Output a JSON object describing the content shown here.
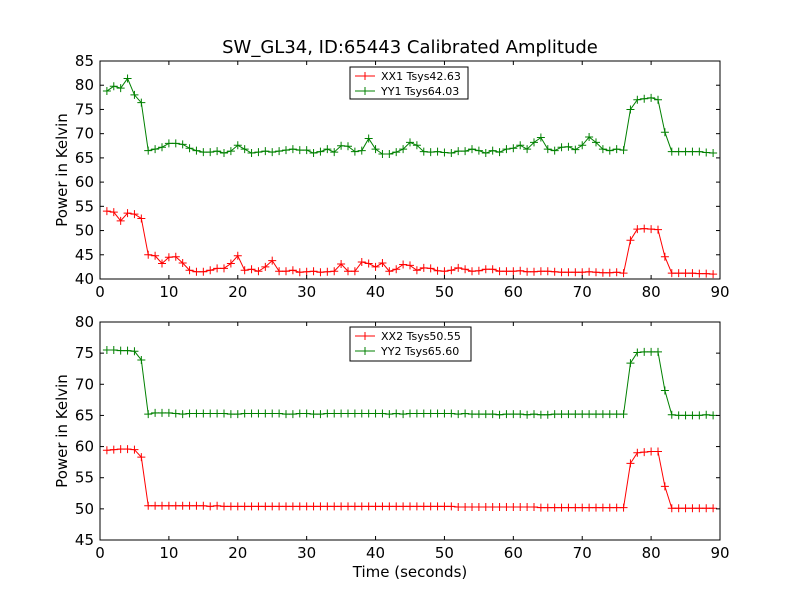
{
  "chart_data": [
    {
      "type": "line",
      "title": "SW_GL34, ID:65443 Calibrated Amplitude",
      "xlabel": "",
      "ylabel": "Power in Kelvin",
      "xlim": [
        0,
        90
      ],
      "ylim": [
        40,
        85
      ],
      "xticks": [
        0,
        10,
        20,
        30,
        40,
        50,
        60,
        70,
        80,
        90
      ],
      "yticks": [
        40,
        45,
        50,
        55,
        60,
        65,
        70,
        75,
        80,
        85
      ],
      "grid": false,
      "legend_position": "top-center",
      "x": [
        1,
        2,
        3,
        4,
        5,
        6,
        7,
        8,
        9,
        10,
        11,
        12,
        13,
        14,
        15,
        16,
        17,
        18,
        19,
        20,
        21,
        22,
        23,
        24,
        25,
        26,
        27,
        28,
        29,
        30,
        31,
        32,
        33,
        34,
        35,
        36,
        37,
        38,
        39,
        40,
        41,
        42,
        43,
        44,
        45,
        46,
        47,
        48,
        49,
        50,
        51,
        52,
        53,
        54,
        55,
        56,
        57,
        58,
        59,
        60,
        61,
        62,
        63,
        64,
        65,
        66,
        67,
        68,
        69,
        70,
        71,
        72,
        73,
        74,
        75,
        76,
        77,
        78,
        79,
        80,
        81,
        82,
        83,
        84,
        85,
        86,
        87,
        88,
        89
      ],
      "series": [
        {
          "name": "XX1 Tsys42.63",
          "color": "#ff0000",
          "values": [
            54.0,
            53.8,
            52.0,
            53.6,
            53.4,
            52.5,
            45.0,
            44.8,
            43.2,
            44.5,
            44.6,
            43.3,
            41.8,
            41.5,
            41.5,
            41.8,
            42.2,
            42.2,
            43.2,
            44.8,
            41.8,
            42.0,
            41.6,
            42.5,
            43.8,
            41.6,
            41.6,
            41.8,
            41.4,
            41.5,
            41.6,
            41.4,
            41.5,
            41.6,
            43.1,
            41.6,
            41.6,
            43.5,
            43.2,
            42.5,
            43.3,
            41.6,
            42.0,
            43.0,
            42.8,
            41.8,
            42.3,
            42.2,
            41.7,
            41.6,
            41.8,
            42.3,
            42.0,
            41.6,
            41.7,
            42.0,
            42.0,
            41.6,
            41.6,
            41.6,
            41.7,
            41.5,
            41.5,
            41.6,
            41.6,
            41.5,
            41.4,
            41.4,
            41.4,
            41.4,
            41.5,
            41.4,
            41.3,
            41.3,
            41.4,
            41.2,
            48.0,
            50.3,
            50.4,
            50.3,
            50.2,
            44.6,
            41.2,
            41.2,
            41.2,
            41.2,
            41.1,
            41.1,
            41.0
          ]
        },
        {
          "name": "YY1 Tsys64.03",
          "color": "#008000",
          "values": [
            78.8,
            79.8,
            79.4,
            81.4,
            78.0,
            76.4,
            66.5,
            66.8,
            67.2,
            68.0,
            68.0,
            67.8,
            67.0,
            66.5,
            66.2,
            66.2,
            66.4,
            66.0,
            66.4,
            67.6,
            66.8,
            66.0,
            66.2,
            66.4,
            66.2,
            66.4,
            66.6,
            66.8,
            66.6,
            66.6,
            66.0,
            66.3,
            66.8,
            66.2,
            67.5,
            67.4,
            66.3,
            66.5,
            69.0,
            66.8,
            65.8,
            65.8,
            66.2,
            66.8,
            68.2,
            67.6,
            66.3,
            66.2,
            66.3,
            66.1,
            66.0,
            66.4,
            66.4,
            66.8,
            66.5,
            66.0,
            66.5,
            66.2,
            66.8,
            67.0,
            67.6,
            66.8,
            68.2,
            69.2,
            66.8,
            66.5,
            67.2,
            67.3,
            66.7,
            67.6,
            69.3,
            68.2,
            66.8,
            66.5,
            66.8,
            66.6,
            75.0,
            77.0,
            77.2,
            77.4,
            77.0,
            70.3,
            66.3,
            66.3,
            66.3,
            66.3,
            66.3,
            66.1,
            66.0
          ]
        }
      ]
    },
    {
      "type": "line",
      "title": "",
      "xlabel": "Time (seconds)",
      "ylabel": "Power in Kelvin",
      "xlim": [
        0,
        90
      ],
      "ylim": [
        45,
        80
      ],
      "xticks": [
        0,
        10,
        20,
        30,
        40,
        50,
        60,
        70,
        80,
        90
      ],
      "yticks": [
        45,
        50,
        55,
        60,
        65,
        70,
        75,
        80
      ],
      "grid": false,
      "legend_position": "top-center",
      "x": [
        1,
        2,
        3,
        4,
        5,
        6,
        7,
        8,
        9,
        10,
        11,
        12,
        13,
        14,
        15,
        16,
        17,
        18,
        19,
        20,
        21,
        22,
        23,
        24,
        25,
        26,
        27,
        28,
        29,
        30,
        31,
        32,
        33,
        34,
        35,
        36,
        37,
        38,
        39,
        40,
        41,
        42,
        43,
        44,
        45,
        46,
        47,
        48,
        49,
        50,
        51,
        52,
        53,
        54,
        55,
        56,
        57,
        58,
        59,
        60,
        61,
        62,
        63,
        64,
        65,
        66,
        67,
        68,
        69,
        70,
        71,
        72,
        73,
        74,
        75,
        76,
        77,
        78,
        79,
        80,
        81,
        82,
        83,
        84,
        85,
        86,
        87,
        88,
        89
      ],
      "series": [
        {
          "name": "XX2 Tsys50.55",
          "color": "#ff0000",
          "values": [
            59.4,
            59.5,
            59.6,
            59.6,
            59.5,
            58.3,
            50.5,
            50.5,
            50.5,
            50.5,
            50.5,
            50.5,
            50.5,
            50.5,
            50.5,
            50.4,
            50.5,
            50.4,
            50.4,
            50.4,
            50.4,
            50.4,
            50.4,
            50.4,
            50.4,
            50.4,
            50.4,
            50.4,
            50.4,
            50.4,
            50.4,
            50.4,
            50.4,
            50.4,
            50.4,
            50.4,
            50.4,
            50.4,
            50.4,
            50.4,
            50.4,
            50.4,
            50.4,
            50.4,
            50.4,
            50.4,
            50.4,
            50.4,
            50.4,
            50.4,
            50.4,
            50.3,
            50.3,
            50.3,
            50.3,
            50.3,
            50.3,
            50.3,
            50.3,
            50.3,
            50.3,
            50.3,
            50.3,
            50.2,
            50.2,
            50.2,
            50.2,
            50.2,
            50.2,
            50.2,
            50.2,
            50.2,
            50.2,
            50.2,
            50.2,
            50.2,
            57.3,
            59.0,
            59.1,
            59.2,
            59.2,
            53.6,
            50.1,
            50.1,
            50.1,
            50.1,
            50.1,
            50.1,
            50.1
          ]
        },
        {
          "name": "YY2 Tsys65.60",
          "color": "#008000",
          "values": [
            75.5,
            75.5,
            75.4,
            75.4,
            75.3,
            73.9,
            65.2,
            65.4,
            65.4,
            65.4,
            65.3,
            65.2,
            65.3,
            65.3,
            65.3,
            65.3,
            65.3,
            65.3,
            65.2,
            65.2,
            65.3,
            65.3,
            65.3,
            65.3,
            65.3,
            65.3,
            65.2,
            65.2,
            65.3,
            65.3,
            65.2,
            65.2,
            65.3,
            65.3,
            65.3,
            65.3,
            65.3,
            65.3,
            65.3,
            65.3,
            65.3,
            65.2,
            65.3,
            65.2,
            65.3,
            65.3,
            65.3,
            65.3,
            65.3,
            65.3,
            65.3,
            65.2,
            65.3,
            65.2,
            65.2,
            65.2,
            65.2,
            65.1,
            65.2,
            65.2,
            65.2,
            65.1,
            65.2,
            65.1,
            65.1,
            65.2,
            65.2,
            65.2,
            65.2,
            65.2,
            65.2,
            65.2,
            65.2,
            65.2,
            65.2,
            65.2,
            73.4,
            75.1,
            75.2,
            75.2,
            75.2,
            69.0,
            65.1,
            65.0,
            65.0,
            65.0,
            65.0,
            65.1,
            65.0
          ]
        }
      ]
    }
  ]
}
